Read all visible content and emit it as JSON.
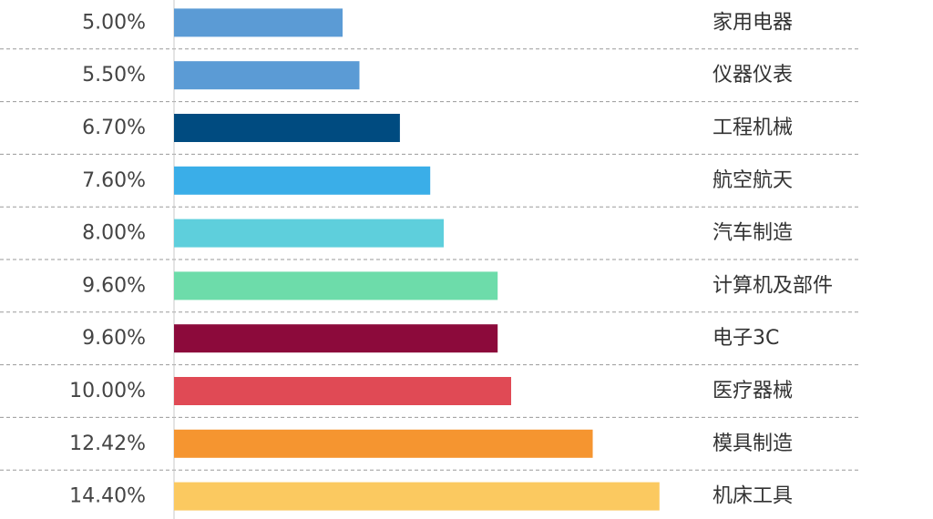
{
  "chart_data": {
    "type": "bar",
    "orientation": "horizontal",
    "categories": [
      "家用电器",
      "仪器仪表",
      "工程机械",
      "航空航天",
      "汽车制造",
      "计算机及部件",
      "电子3C",
      "医疗器械",
      "模具制造",
      "机床工具"
    ],
    "values": [
      5.0,
      5.5,
      6.7,
      7.6,
      8.0,
      9.6,
      9.6,
      10.0,
      12.42,
      14.4
    ],
    "value_labels": [
      "5.00%",
      "5.50%",
      "6.70%",
      "7.60%",
      "8.00%",
      "9.60%",
      "9.60%",
      "10.00%",
      "12.42%",
      "14.40%"
    ],
    "colors": [
      "#5b9bd5",
      "#5b9bd5",
      "#004b80",
      "#3aaee8",
      "#5ecfdc",
      "#6ddcaa",
      "#8c0a3b",
      "#e04a55",
      "#f59530",
      "#fbc960"
    ],
    "xlim": [
      0,
      20
    ],
    "grid": false,
    "title": "",
    "xlabel": "",
    "ylabel": ""
  }
}
